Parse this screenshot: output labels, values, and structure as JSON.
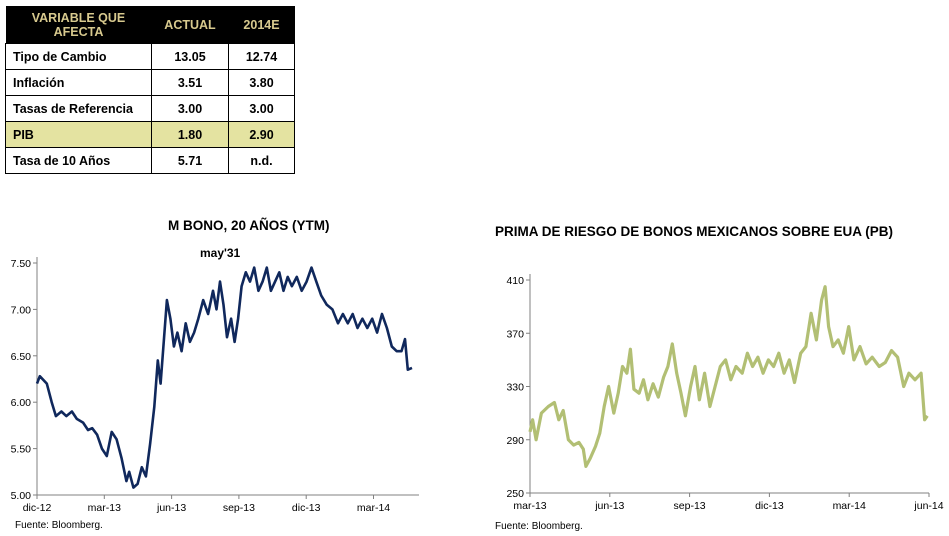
{
  "table": {
    "headers": [
      "VARIABLE QUE AFECTA",
      "ACTUAL",
      "2014E"
    ],
    "rows": [
      {
        "label": "Tipo de Cambio",
        "actual": "13.05",
        "est": "12.74"
      },
      {
        "label": "Inflación",
        "actual": "3.51",
        "est": "3.80"
      },
      {
        "label": "Tasas de Referencia",
        "actual": "3.00",
        "est": "3.00"
      },
      {
        "label": "PIB",
        "actual": "1.80",
        "est": "2.90"
      },
      {
        "label": "Tasa de 10 Años",
        "actual": "5.71",
        "est": "n.d."
      }
    ],
    "highlight_color": "#e4e3a1"
  },
  "chart_data": [
    {
      "type": "line",
      "title": "M BONO, 20 AÑOS (YTM)",
      "subtitle": "may'31",
      "source": "Fuente: Bloomberg.",
      "color": "#10285c",
      "xticks": [
        "dic-12",
        "mar-13",
        "jun-13",
        "sep-13",
        "dic-13",
        "mar-14"
      ],
      "ylim": [
        5.0,
        7.5
      ],
      "yticks": [
        "5.00",
        "5.50",
        "6.00",
        "6.50",
        "7.00",
        "7.50"
      ],
      "x_range": [
        "2012-12-01",
        "2014-06-01"
      ],
      "series": [
        {
          "values": [
            [
              "2012-12-01",
              6.2
            ],
            [
              "2012-12-05",
              6.28
            ],
            [
              "2012-12-15",
              6.2
            ],
            [
              "2012-12-22",
              6.0
            ],
            [
              "2012-12-28",
              5.85
            ],
            [
              "2013-01-05",
              5.9
            ],
            [
              "2013-01-12",
              5.85
            ],
            [
              "2013-01-20",
              5.9
            ],
            [
              "2013-01-27",
              5.82
            ],
            [
              "2013-02-05",
              5.78
            ],
            [
              "2013-02-12",
              5.7
            ],
            [
              "2013-02-18",
              5.72
            ],
            [
              "2013-02-25",
              5.65
            ],
            [
              "2013-03-04",
              5.5
            ],
            [
              "2013-03-11",
              5.42
            ],
            [
              "2013-03-18",
              5.68
            ],
            [
              "2013-03-25",
              5.6
            ],
            [
              "2013-04-01",
              5.4
            ],
            [
              "2013-04-08",
              5.15
            ],
            [
              "2013-04-12",
              5.25
            ],
            [
              "2013-04-18",
              5.08
            ],
            [
              "2013-04-24",
              5.12
            ],
            [
              "2013-04-30",
              5.3
            ],
            [
              "2013-05-06",
              5.2
            ],
            [
              "2013-05-12",
              5.55
            ],
            [
              "2013-05-18",
              5.95
            ],
            [
              "2013-05-23",
              6.45
            ],
            [
              "2013-05-27",
              6.2
            ],
            [
              "2013-06-01",
              6.7
            ],
            [
              "2013-06-05",
              7.1
            ],
            [
              "2013-06-10",
              6.9
            ],
            [
              "2013-06-15",
              6.6
            ],
            [
              "2013-06-20",
              6.75
            ],
            [
              "2013-06-26",
              6.55
            ],
            [
              "2013-07-02",
              6.85
            ],
            [
              "2013-07-08",
              6.65
            ],
            [
              "2013-07-14",
              6.75
            ],
            [
              "2013-07-20",
              6.9
            ],
            [
              "2013-07-27",
              7.1
            ],
            [
              "2013-08-03",
              6.95
            ],
            [
              "2013-08-10",
              7.2
            ],
            [
              "2013-08-15",
              7.0
            ],
            [
              "2013-08-20",
              7.3
            ],
            [
              "2013-08-25",
              7.05
            ],
            [
              "2013-08-30",
              6.7
            ],
            [
              "2013-09-05",
              6.9
            ],
            [
              "2013-09-10",
              6.65
            ],
            [
              "2013-09-15",
              6.9
            ],
            [
              "2013-09-20",
              7.25
            ],
            [
              "2013-09-26",
              7.4
            ],
            [
              "2013-10-02",
              7.3
            ],
            [
              "2013-10-08",
              7.45
            ],
            [
              "2013-10-14",
              7.2
            ],
            [
              "2013-10-20",
              7.3
            ],
            [
              "2013-10-26",
              7.45
            ],
            [
              "2013-11-01",
              7.2
            ],
            [
              "2013-11-07",
              7.3
            ],
            [
              "2013-11-13",
              7.4
            ],
            [
              "2013-11-19",
              7.2
            ],
            [
              "2013-11-25",
              7.35
            ],
            [
              "2013-12-01",
              7.25
            ],
            [
              "2013-12-08",
              7.35
            ],
            [
              "2013-12-15",
              7.2
            ],
            [
              "2013-12-22",
              7.3
            ],
            [
              "2013-12-29",
              7.45
            ],
            [
              "2014-01-05",
              7.3
            ],
            [
              "2014-01-12",
              7.15
            ],
            [
              "2014-01-20",
              7.05
            ],
            [
              "2014-01-28",
              7.0
            ],
            [
              "2014-02-05",
              6.85
            ],
            [
              "2014-02-12",
              6.95
            ],
            [
              "2014-02-19",
              6.85
            ],
            [
              "2014-02-26",
              6.95
            ],
            [
              "2014-03-05",
              6.8
            ],
            [
              "2014-03-12",
              6.9
            ],
            [
              "2014-03-19",
              6.8
            ],
            [
              "2014-03-26",
              6.9
            ],
            [
              "2014-04-02",
              6.75
            ],
            [
              "2014-04-09",
              6.95
            ],
            [
              "2014-04-16",
              6.8
            ],
            [
              "2014-04-23",
              6.6
            ],
            [
              "2014-04-30",
              6.55
            ],
            [
              "2014-05-07",
              6.55
            ],
            [
              "2014-05-12",
              6.68
            ],
            [
              "2014-05-16",
              6.35
            ],
            [
              "2014-05-22",
              6.37
            ]
          ]
        }
      ]
    },
    {
      "type": "line",
      "title": "PRIMA DE RIESGO DE BONOS MEXICANOS SOBRE EUA (PB)",
      "source": "Fuente: Bloomberg.",
      "color": "#b2bf74",
      "xticks": [
        "mar-13",
        "jun-13",
        "sep-13",
        "dic-13",
        "mar-14",
        "jun-14"
      ],
      "ylim": [
        250,
        410
      ],
      "yticks": [
        "250",
        "290",
        "330",
        "370",
        "410"
      ],
      "x_range": [
        "2013-03-01",
        "2014-06-01"
      ],
      "series": [
        {
          "values": [
            [
              "2013-03-01",
              296
            ],
            [
              "2013-03-04",
              305
            ],
            [
              "2013-03-08",
              290
            ],
            [
              "2013-03-14",
              310
            ],
            [
              "2013-03-22",
              315
            ],
            [
              "2013-03-29",
              318
            ],
            [
              "2013-04-03",
              305
            ],
            [
              "2013-04-08",
              312
            ],
            [
              "2013-04-14",
              290
            ],
            [
              "2013-04-20",
              286
            ],
            [
              "2013-04-26",
              288
            ],
            [
              "2013-05-01",
              283
            ],
            [
              "2013-05-04",
              270
            ],
            [
              "2013-05-09",
              276
            ],
            [
              "2013-05-15",
              285
            ],
            [
              "2013-05-20",
              295
            ],
            [
              "2013-05-25",
              315
            ],
            [
              "2013-05-30",
              330
            ],
            [
              "2013-06-05",
              310
            ],
            [
              "2013-06-10",
              325
            ],
            [
              "2013-06-15",
              345
            ],
            [
              "2013-06-20",
              340
            ],
            [
              "2013-06-24",
              358
            ],
            [
              "2013-06-28",
              328
            ],
            [
              "2013-07-04",
              325
            ],
            [
              "2013-07-09",
              335
            ],
            [
              "2013-07-14",
              320
            ],
            [
              "2013-07-20",
              332
            ],
            [
              "2013-07-26",
              322
            ],
            [
              "2013-08-01",
              337
            ],
            [
              "2013-08-06",
              345
            ],
            [
              "2013-08-11",
              362
            ],
            [
              "2013-08-16",
              340
            ],
            [
              "2013-08-21",
              325
            ],
            [
              "2013-08-26",
              308
            ],
            [
              "2013-09-01",
              330
            ],
            [
              "2013-09-06",
              345
            ],
            [
              "2013-09-11",
              320
            ],
            [
              "2013-09-17",
              340
            ],
            [
              "2013-09-23",
              315
            ],
            [
              "2013-09-29",
              330
            ],
            [
              "2013-10-05",
              345
            ],
            [
              "2013-10-11",
              350
            ],
            [
              "2013-10-17",
              335
            ],
            [
              "2013-10-23",
              345
            ],
            [
              "2013-10-30",
              340
            ],
            [
              "2013-11-05",
              355
            ],
            [
              "2013-11-11",
              345
            ],
            [
              "2013-11-17",
              352
            ],
            [
              "2013-11-23",
              340
            ],
            [
              "2013-11-29",
              350
            ],
            [
              "2013-12-05",
              345
            ],
            [
              "2013-12-11",
              355
            ],
            [
              "2013-12-17",
              340
            ],
            [
              "2013-12-23",
              350
            ],
            [
              "2013-12-29",
              333
            ],
            [
              "2014-01-05",
              355
            ],
            [
              "2014-01-11",
              360
            ],
            [
              "2014-01-17",
              385
            ],
            [
              "2014-01-23",
              365
            ],
            [
              "2014-01-29",
              395
            ],
            [
              "2014-02-02",
              405
            ],
            [
              "2014-02-06",
              375
            ],
            [
              "2014-02-11",
              360
            ],
            [
              "2014-02-17",
              365
            ],
            [
              "2014-02-23",
              355
            ],
            [
              "2014-03-01",
              375
            ],
            [
              "2014-03-07",
              350
            ],
            [
              "2014-03-14",
              360
            ],
            [
              "2014-03-21",
              347
            ],
            [
              "2014-03-28",
              352
            ],
            [
              "2014-04-05",
              345
            ],
            [
              "2014-04-12",
              348
            ],
            [
              "2014-04-19",
              357
            ],
            [
              "2014-04-26",
              352
            ],
            [
              "2014-05-03",
              330
            ],
            [
              "2014-05-09",
              340
            ],
            [
              "2014-05-16",
              335
            ],
            [
              "2014-05-23",
              340
            ],
            [
              "2014-05-27",
              305
            ],
            [
              "2014-05-30",
              308
            ]
          ]
        }
      ]
    }
  ]
}
